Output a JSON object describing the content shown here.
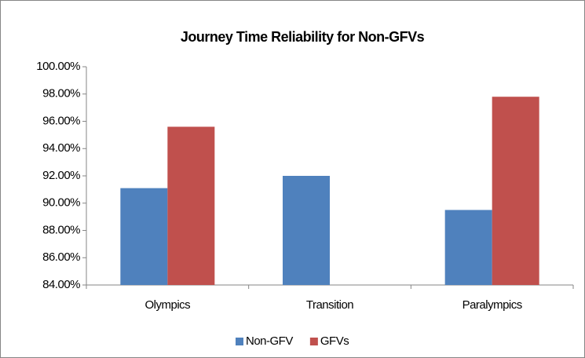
{
  "chart_data": {
    "type": "bar",
    "title": "Journey Time Reliability for Non-GFVs",
    "categories": [
      "Olympics",
      "Transition",
      "Paralympics"
    ],
    "series": [
      {
        "name": "Non-GFV",
        "color": "#4f81bd",
        "values": [
          91.1,
          92.0,
          89.5
        ]
      },
      {
        "name": "GFVs",
        "color": "#c0504d",
        "values": [
          95.6,
          null,
          97.8
        ]
      }
    ],
    "ylim": [
      84,
      100
    ],
    "yticks": [
      {
        "value": 84,
        "label": "84.00%"
      },
      {
        "value": 86,
        "label": "86.00%"
      },
      {
        "value": 88,
        "label": "88.00%"
      },
      {
        "value": 90,
        "label": "90.00%"
      },
      {
        "value": 92,
        "label": "92.00%"
      },
      {
        "value": 94,
        "label": "94.00%"
      },
      {
        "value": 96,
        "label": "96.00%"
      },
      {
        "value": 98,
        "label": "98.00%"
      },
      {
        "value": 100,
        "label": "100.00%"
      }
    ],
    "grid": false,
    "legend": "bottom"
  }
}
